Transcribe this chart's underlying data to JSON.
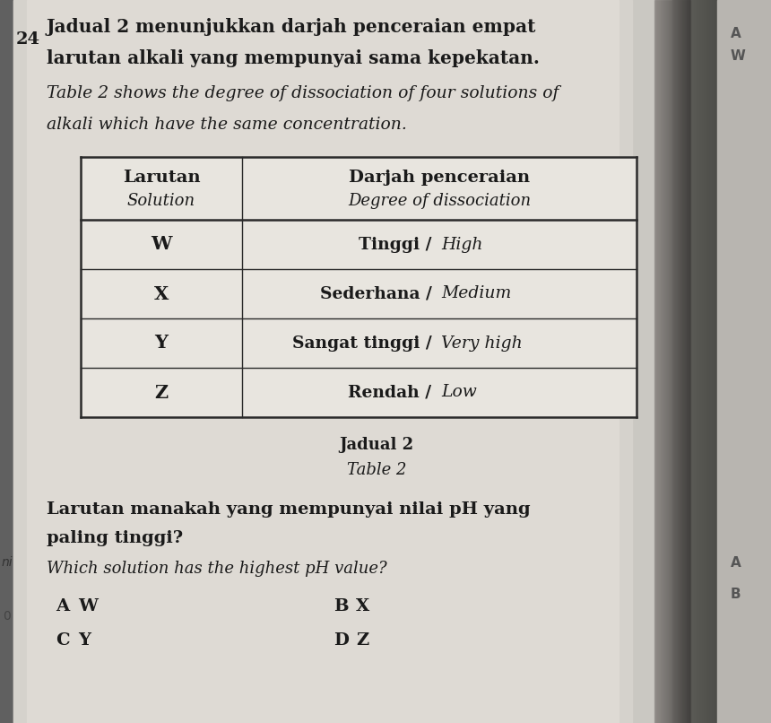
{
  "question_number": "24",
  "title_line1_bold": "Jadual 2 menunjukkan darjah penceraian empat",
  "title_line2_bold": "larutan alkali yang mempunyai sama kepekatan.",
  "title_line3_italic": "Table 2 shows the degree of dissociation of four solutions of",
  "title_line4_italic": "alkali which have the same concentration.",
  "table_header_col1_bold": "Larutan",
  "table_header_col1_italic": "Solution",
  "table_header_col2_bold": "Darjah penceraian",
  "table_header_col2_italic": "Degree of dissociation",
  "table_rows": [
    [
      "W",
      "Tinggi / High"
    ],
    [
      "X",
      "Sederhana / Medium"
    ],
    [
      "Y",
      "Sangat tinggi / Very high"
    ],
    [
      "Z",
      "Rendah / Low"
    ]
  ],
  "table_caption_bold": "Jadual 2",
  "table_caption_italic": "Table 2",
  "question_bold": "Larutan manakah yang mempunyai nilai pH yang",
  "question_bold2": "paling tinggi?",
  "question_italic": "Which solution has the highest pH value?",
  "options": [
    [
      "A",
      "W",
      "B",
      "X"
    ],
    [
      "C",
      "Y",
      "D",
      "Z"
    ]
  ],
  "page_color": "#d8d5d0",
  "binding_color": "#7a7570",
  "text_color": "#1a1a1a",
  "table_bg": "#e8e5e0",
  "table_line_color": "#2a2a2a"
}
